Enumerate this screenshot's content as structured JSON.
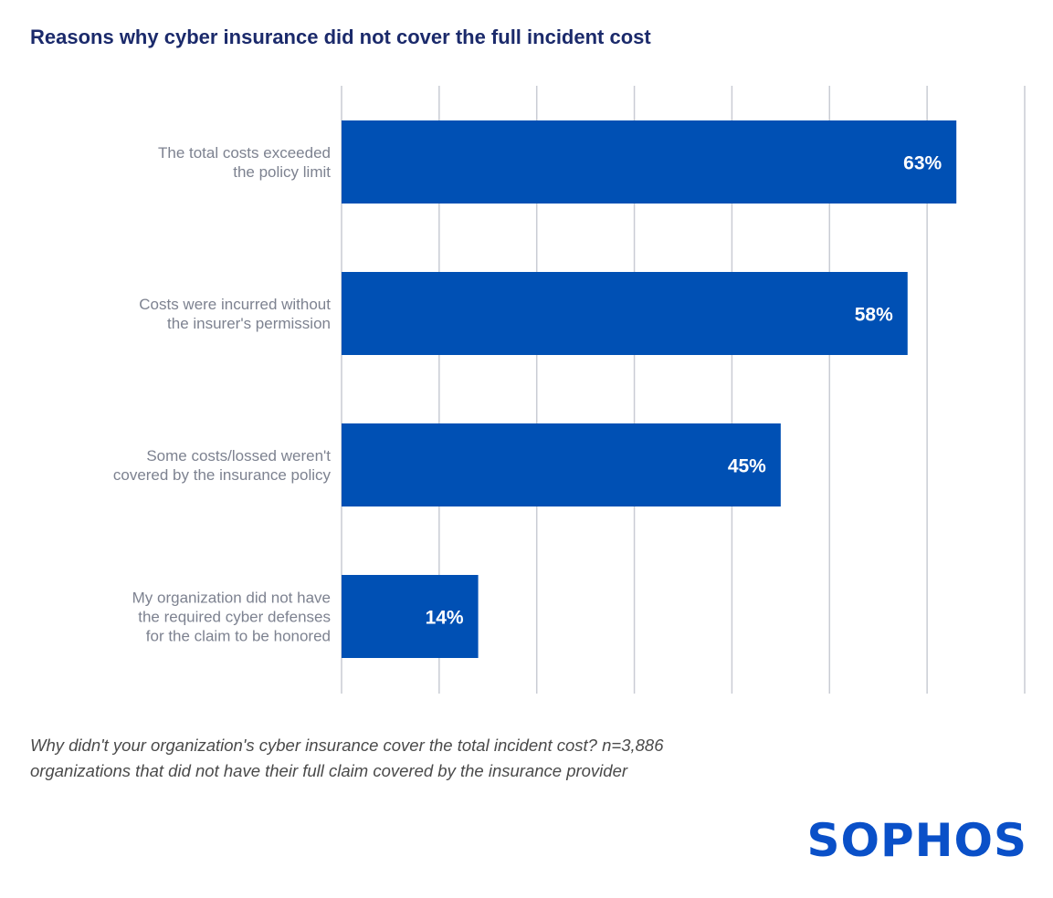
{
  "chart_data": {
    "type": "bar",
    "orientation": "horizontal",
    "title": "Reasons why cyber insurance did not cover the full incident cost",
    "categories": [
      [
        "The total costs exceeded",
        "the policy limit"
      ],
      [
        "Costs were incurred without",
        "the insurer's permission"
      ],
      [
        "Some costs/lossed weren't",
        "covered by the insurance policy"
      ],
      [
        "My organization did not have",
        "the required cyber defenses",
        "for the claim to be honored"
      ]
    ],
    "values": [
      63,
      58,
      45,
      14
    ],
    "value_labels": [
      "63%",
      "58%",
      "45%",
      "14%"
    ],
    "xlim": [
      0,
      70
    ],
    "grid_step": 10,
    "grid": true,
    "xlabel": "",
    "ylabel": "",
    "bar_color": "#0050b4",
    "grid_color": "#c9ccd4"
  },
  "caption": {
    "line1": "Why didn't your organization's cyber insurance cover the total incident cost? n=3,886",
    "line2": "organizations that did not have their full claim covered by the insurance provider"
  },
  "brand": {
    "logo_text": "SOPHOS",
    "color": "#0a50c8"
  }
}
